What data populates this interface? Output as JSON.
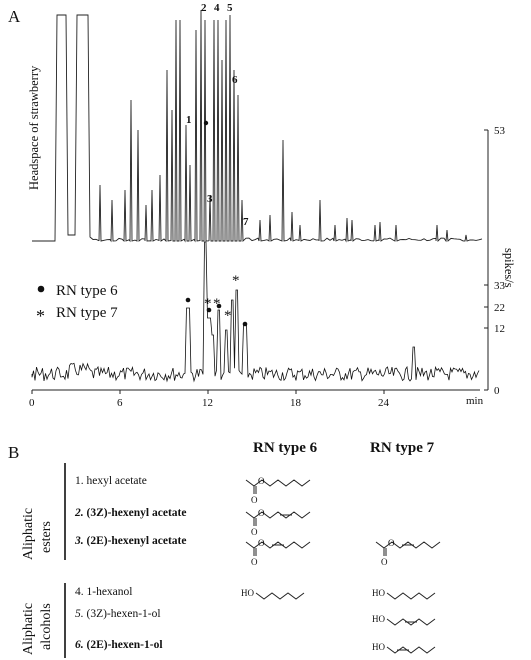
{
  "panel_a": {
    "label": "A",
    "ylabel_left": "Headspace of strawberry",
    "ylabel_right": "spikes/s",
    "x_ticks": [
      "0",
      "6",
      "12",
      "18",
      "24"
    ],
    "x_unit": "min",
    "right_ticks": [
      "53",
      "33",
      "22",
      "12",
      "0"
    ],
    "peak_numbers": [
      "1",
      "2",
      "3",
      "4",
      "5",
      "6",
      "7"
    ],
    "legend": [
      {
        "marker": "●",
        "text": "RN type 6"
      },
      {
        "marker": "*",
        "text": "RN type 7"
      }
    ]
  },
  "panel_b": {
    "label": "B",
    "col_headers": [
      "RN type 6",
      "RN type 7"
    ],
    "groups": [
      {
        "category": [
          "Aliphatic",
          "esters"
        ],
        "rows": [
          {
            "num": "1.",
            "name": "hexyl acetate",
            "bold": false,
            "has6": true,
            "has7": false
          },
          {
            "num": "2.",
            "name": "(3Z)-hexenyl acetate",
            "bold": true,
            "has6": true,
            "has7": false
          },
          {
            "num": "3.",
            "name": "(2E)-hexenyl acetate",
            "bold": true,
            "has6": true,
            "has7": true
          }
        ]
      },
      {
        "category": [
          "Aliphatic",
          "alcohols"
        ],
        "rows": [
          {
            "num": "4.",
            "name": "1-hexanol",
            "bold": false,
            "has6": true,
            "has7": true
          },
          {
            "num": "5.",
            "name": "(3Z)-hexen-1-ol",
            "bold": false,
            "has6": false,
            "has7": true
          },
          {
            "num": "6.",
            "name": "(2E)-hexen-1-ol",
            "bold": true,
            "has6": false,
            "has7": true
          }
        ]
      }
    ],
    "atom_labels": {
      "ho": "HO",
      "o": "O"
    }
  }
}
